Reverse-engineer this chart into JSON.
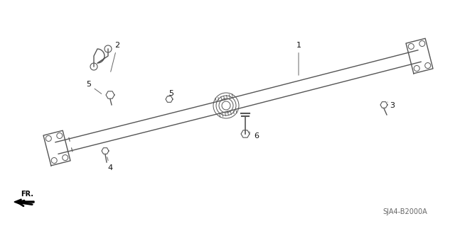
{
  "background_color": "#ffffff",
  "fig_width": 6.4,
  "fig_height": 3.19,
  "dpi": 100,
  "diagram_code": "SJA4-B2000A",
  "gray": "#555555",
  "dark": "#333333"
}
